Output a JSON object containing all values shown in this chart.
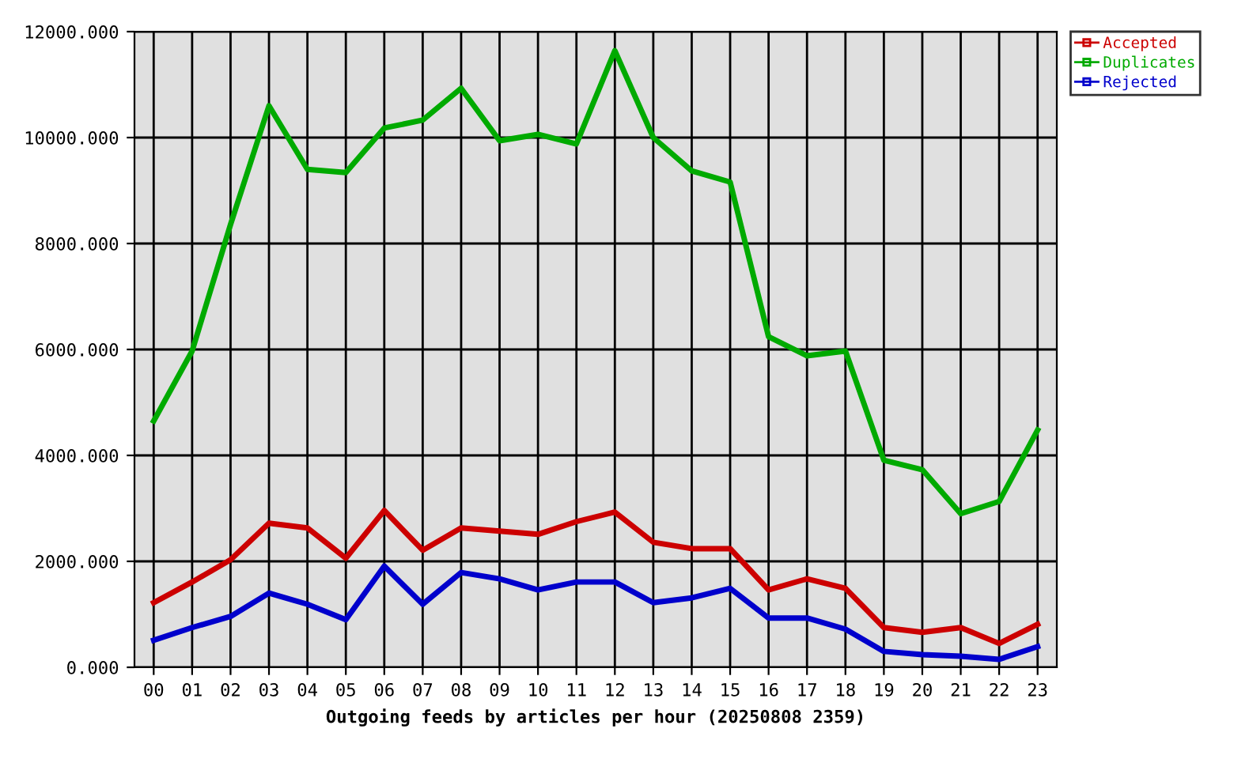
{
  "chart_data": {
    "type": "line",
    "xlabel": "Outgoing feeds by articles per hour (20250808 2359)",
    "categories": [
      "00",
      "01",
      "02",
      "03",
      "04",
      "05",
      "06",
      "07",
      "08",
      "09",
      "10",
      "11",
      "12",
      "13",
      "14",
      "15",
      "16",
      "17",
      "18",
      "19",
      "20",
      "21",
      "22",
      "23"
    ],
    "series": [
      {
        "name": "Accepted",
        "color": "#cc0000",
        "values": [
          1220,
          1610,
          2030,
          2720,
          2630,
          2060,
          2960,
          2210,
          2630,
          2570,
          2510,
          2750,
          2930,
          2360,
          2240,
          2240,
          1460,
          1670,
          1490,
          750,
          660,
          750,
          450,
          810
        ]
      },
      {
        "name": "Duplicates",
        "color": "#00aa00",
        "values": [
          4650,
          5970,
          8360,
          10600,
          9400,
          9340,
          10180,
          10330,
          10930,
          9940,
          10060,
          9880,
          11640,
          10000,
          9370,
          9160,
          6240,
          5880,
          5970,
          3910,
          3730,
          2900,
          3130,
          4480
        ]
      },
      {
        "name": "Rejected",
        "color": "#0000cc",
        "values": [
          510,
          750,
          960,
          1400,
          1190,
          900,
          1910,
          1190,
          1790,
          1670,
          1460,
          1610,
          1610,
          1220,
          1310,
          1490,
          930,
          930,
          720,
          300,
          240,
          210,
          150,
          390
        ]
      }
    ],
    "ylim": [
      0,
      12000
    ],
    "yticks": [
      {
        "value": 0,
        "label": "0.000"
      },
      {
        "value": 2000,
        "label": "2000.000"
      },
      {
        "value": 4000,
        "label": "4000.000"
      },
      {
        "value": 6000,
        "label": "6000.000"
      },
      {
        "value": 8000,
        "label": "8000.000"
      },
      {
        "value": 10000,
        "label": "10000.000"
      },
      {
        "value": 12000,
        "label": "12000.000"
      }
    ],
    "grid": true,
    "legend": "top right",
    "line_style": "solid"
  }
}
